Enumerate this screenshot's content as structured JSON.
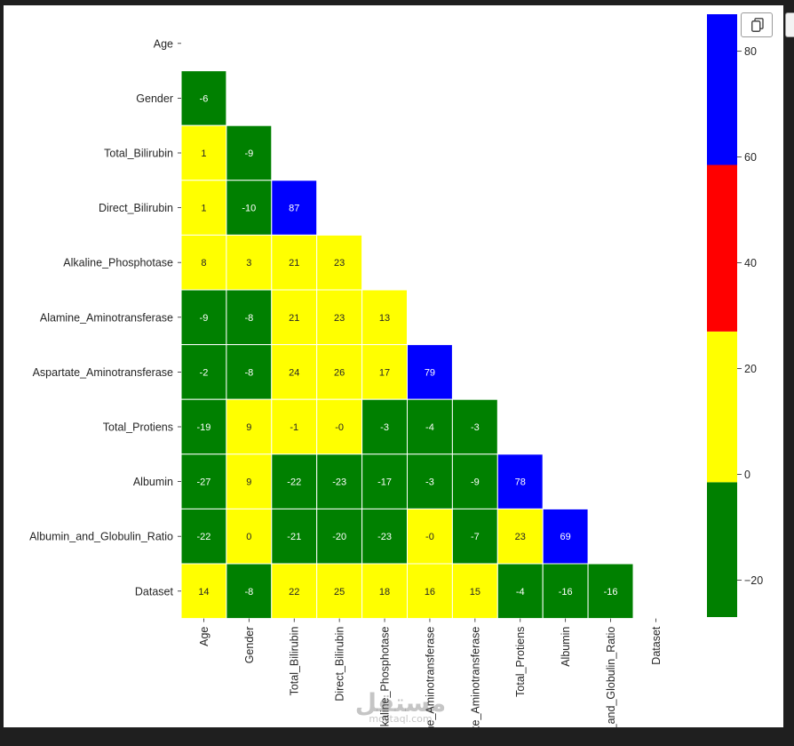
{
  "chart_data": {
    "type": "heatmap",
    "mask": "upper-triangle",
    "row_labels": [
      "Age",
      "Gender",
      "Total_Bilirubin",
      "Direct_Bilirubin",
      "Alkaline_Phosphotase",
      "Alamine_Aminotransferase",
      "Aspartate_Aminotransferase",
      "Total_Protiens",
      "Albumin",
      "Albumin_and_Globulin_Ratio",
      "Dataset"
    ],
    "col_labels": [
      "Age",
      "Gender",
      "Total_Bilirubin",
      "Direct_Bilirubin",
      "Alkaline_Phosphotase",
      "Alamine_Aminotransferase",
      "Aspartate_Aminotransferase",
      "Total_Protiens",
      "Albumin",
      "Albumin_and_Globulin_Ratio",
      "Dataset"
    ],
    "values": [
      [],
      [
        "-6"
      ],
      [
        "1",
        "-9"
      ],
      [
        "1",
        "-10",
        "87"
      ],
      [
        "8",
        "3",
        "21",
        "23"
      ],
      [
        "-9",
        "-8",
        "21",
        "23",
        "13"
      ],
      [
        "-2",
        "-8",
        "24",
        "26",
        "17",
        "79"
      ],
      [
        "-19",
        "9",
        "-1",
        "-0",
        "-3",
        "-4",
        "-3"
      ],
      [
        "-27",
        "9",
        "-22",
        "-23",
        "-17",
        "-3",
        "-9",
        "78"
      ],
      [
        "-22",
        "0",
        "-21",
        "-20",
        "-23",
        "-0",
        "-7",
        "23",
        "69"
      ],
      [
        "14",
        "-8",
        "22",
        "25",
        "18",
        "16",
        "15",
        "-4",
        "-16",
        "-16"
      ]
    ],
    "colorbar": {
      "vmin": -27,
      "vmax": 87,
      "ticks": [
        "-20",
        "0",
        "20",
        "40",
        "60",
        "80"
      ],
      "bins": [
        {
          "from": -27,
          "to": -1.5,
          "color": "#008000",
          "label_color": "#ffffff"
        },
        {
          "from": -1.5,
          "to": 27,
          "color": "#ffff00",
          "label_color": "#262626"
        },
        {
          "from": 27,
          "to": 58.5,
          "color": "#ff0000",
          "label_color": "#ffffff"
        },
        {
          "from": 58.5,
          "to": 87,
          "color": "#0000ff",
          "label_color": "#ffffff"
        }
      ]
    }
  },
  "ui": {
    "copy_icon": "copy-icon",
    "watermark_main": "مستقل",
    "watermark_sub": "mostaql.com"
  }
}
